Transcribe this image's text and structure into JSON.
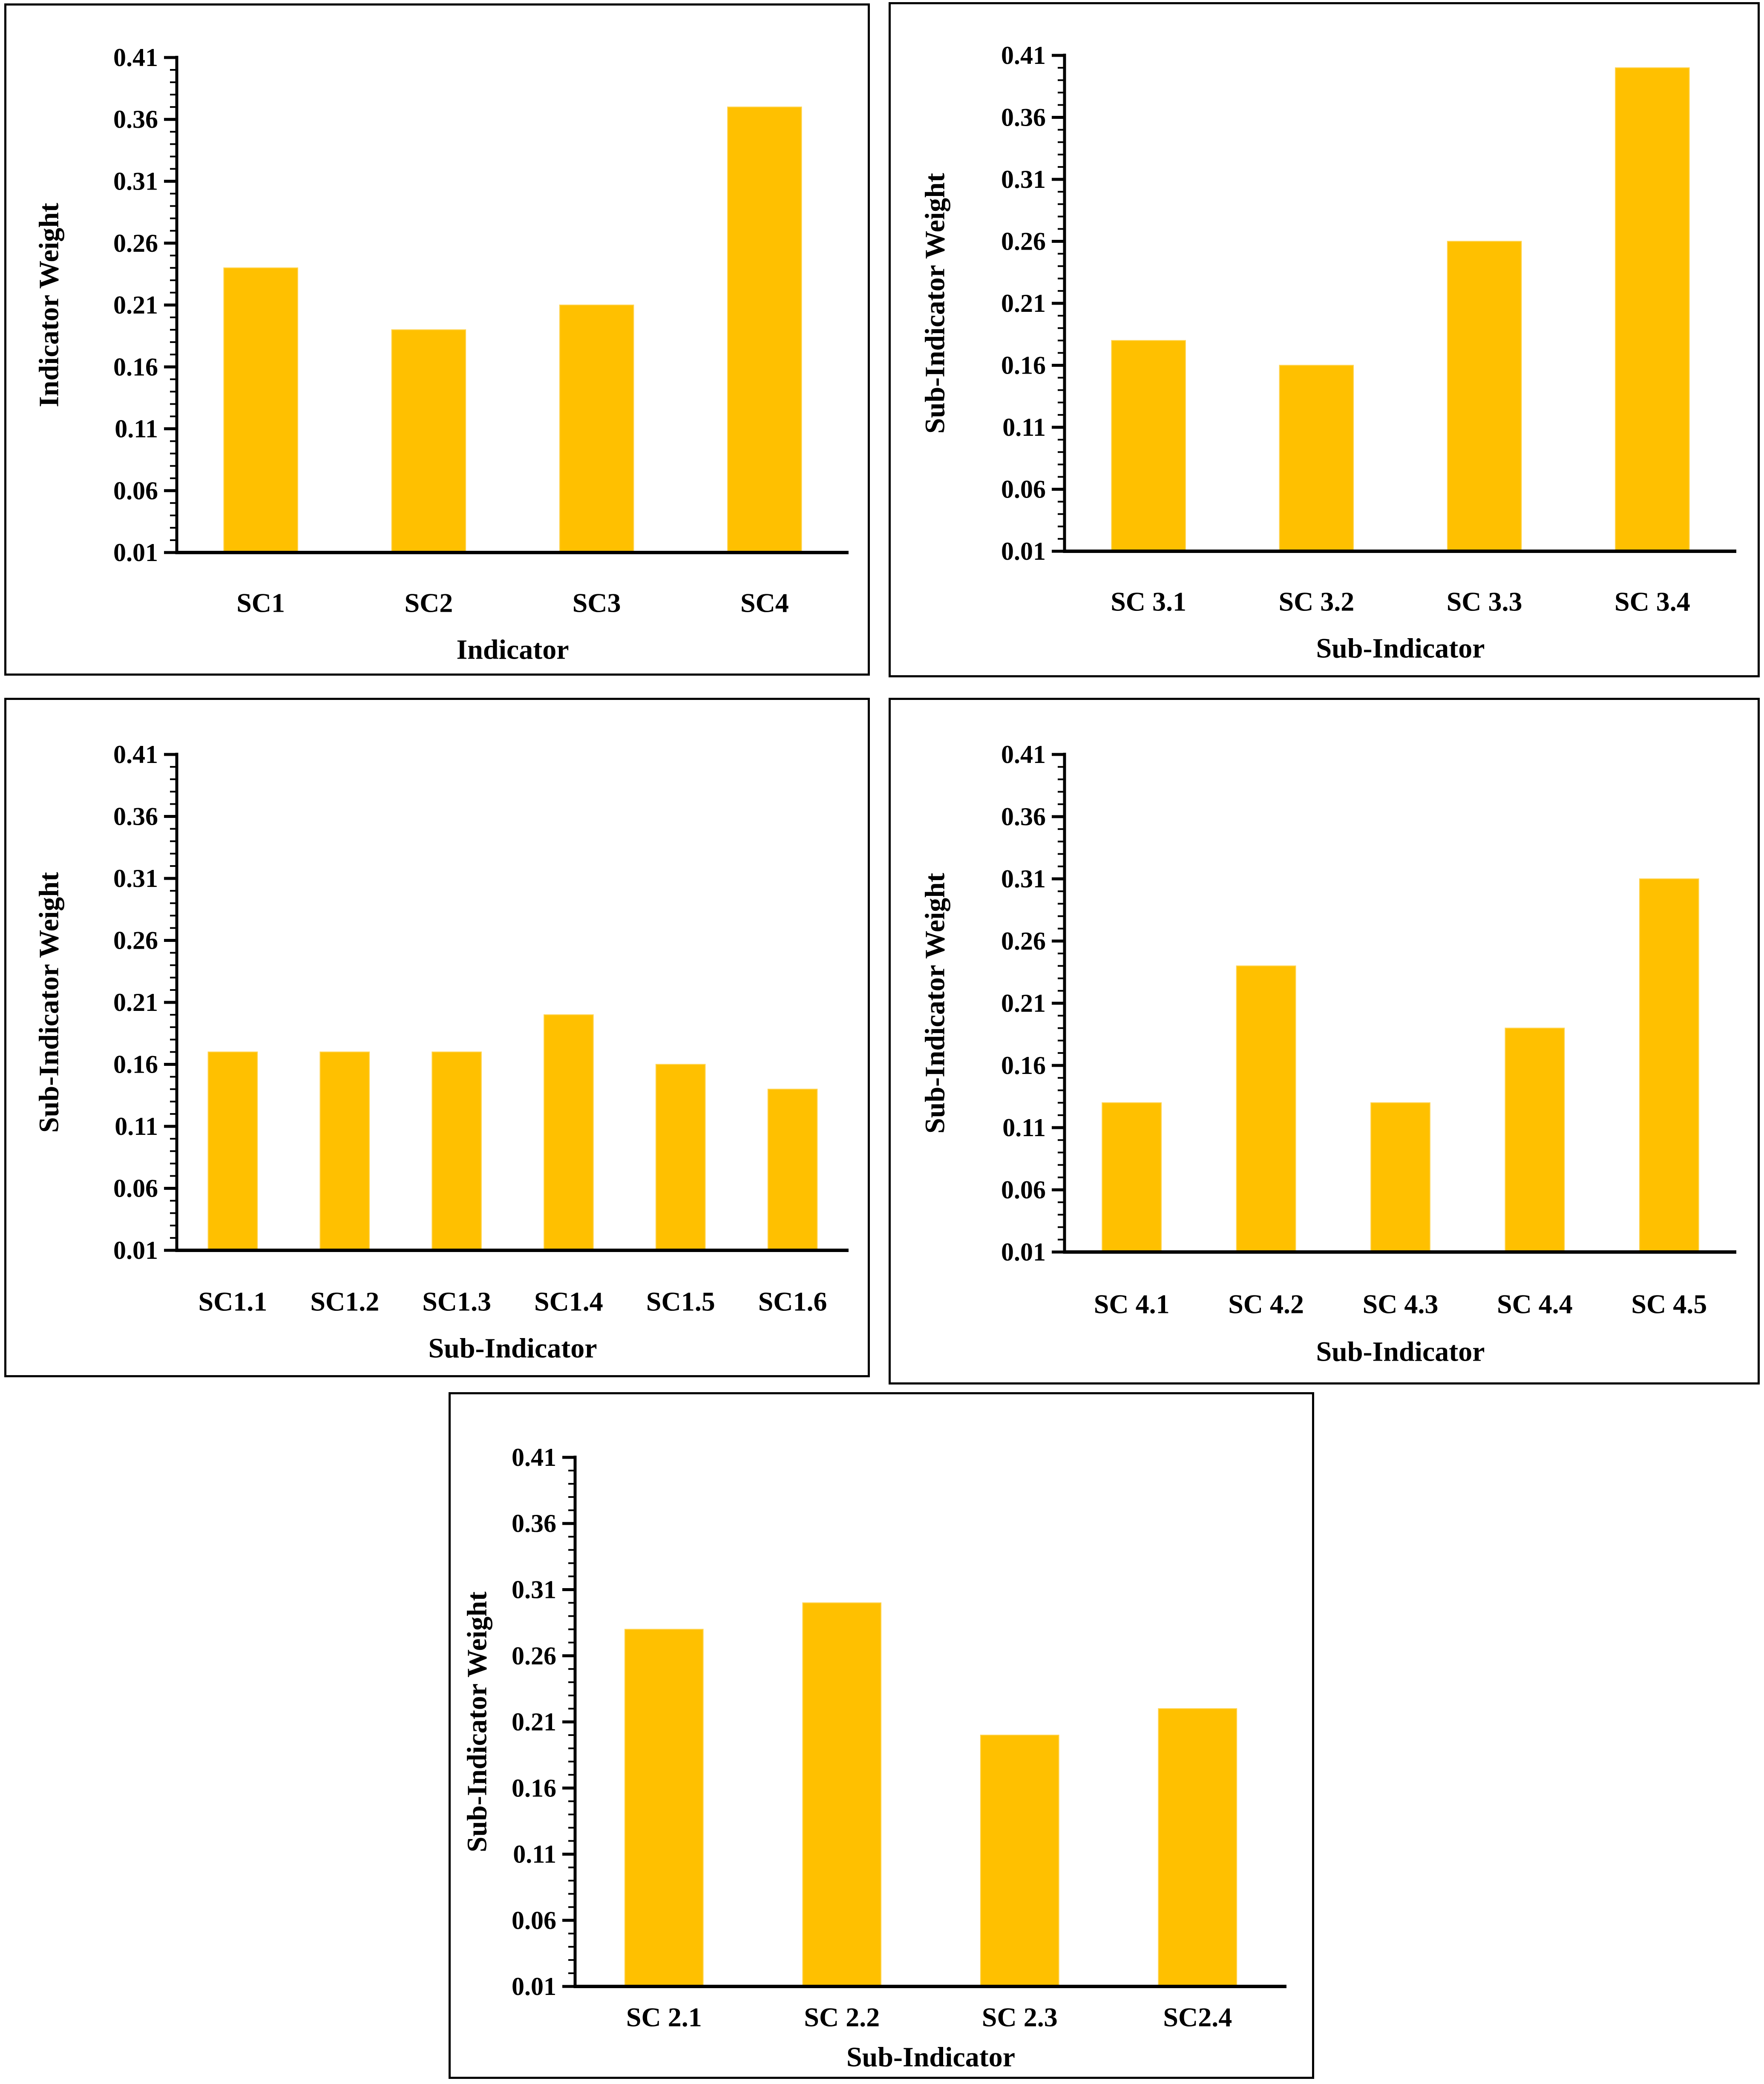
{
  "page": {
    "background": "#ffffff",
    "description": "Five AHP weight bar charts: one indicator-level chart and four sub-indicator charts"
  },
  "colors": {
    "bar_fill": "#FFC000",
    "bar_edge_highlight": "#FFD34D",
    "axis": "#000000",
    "panel_border": "#000000",
    "text": "#000000"
  },
  "axis_defaults": {
    "ymin": 0.01,
    "ymax": 0.41,
    "major_step": 0.05,
    "minor_step": 0.01,
    "tick_labels_top_to_bottom": [
      "0.41",
      "0.36",
      "0.31",
      "0.26",
      "0.21",
      "0.16",
      "0.11",
      "0.06",
      "0.01"
    ],
    "grid": false,
    "legend": "none"
  },
  "chart_data": [
    {
      "type": "bar",
      "title": "",
      "xlabel": "Indicator",
      "ylabel": "Indicator Weight",
      "categories": [
        "SC1",
        "SC2",
        "SC3",
        "SC4"
      ],
      "values": [
        0.24,
        0.19,
        0.21,
        0.37
      ],
      "ylim": [
        0.01,
        0.41
      ],
      "yticks": [
        0.01,
        0.06,
        0.11,
        0.16,
        0.21,
        0.26,
        0.31,
        0.36,
        0.41
      ],
      "grid": false
    },
    {
      "type": "bar",
      "title": "",
      "xlabel": "Sub-Indicator",
      "ylabel": "Sub-Indicator Weight",
      "categories": [
        "SC 3.1",
        "SC 3.2",
        "SC 3.3",
        "SC 3.4"
      ],
      "values": [
        0.18,
        0.16,
        0.26,
        0.4
      ],
      "ylim": [
        0.01,
        0.41
      ],
      "yticks": [
        0.01,
        0.06,
        0.11,
        0.16,
        0.21,
        0.26,
        0.31,
        0.36,
        0.41
      ],
      "grid": false
    },
    {
      "type": "bar",
      "title": "",
      "xlabel": "Sub-Indicator",
      "ylabel": "Sub-Indicator Weight",
      "categories": [
        "SC1.1",
        "SC1.2",
        "SC1.3",
        "SC1.4",
        "SC1.5",
        "SC1.6"
      ],
      "values": [
        0.17,
        0.17,
        0.17,
        0.2,
        0.16,
        0.14
      ],
      "ylim": [
        0.01,
        0.41
      ],
      "yticks": [
        0.01,
        0.06,
        0.11,
        0.16,
        0.21,
        0.26,
        0.31,
        0.36,
        0.41
      ],
      "grid": false
    },
    {
      "type": "bar",
      "title": "",
      "xlabel": "Sub-Indicator",
      "ylabel": "Sub-Indicator Weight",
      "categories": [
        "SC 4.1",
        "SC 4.2",
        "SC 4.3",
        "SC 4.4",
        "SC 4.5"
      ],
      "values": [
        0.13,
        0.24,
        0.13,
        0.19,
        0.31
      ],
      "ylim": [
        0.01,
        0.41
      ],
      "yticks": [
        0.01,
        0.06,
        0.11,
        0.16,
        0.21,
        0.26,
        0.31,
        0.36,
        0.41
      ],
      "grid": false
    },
    {
      "type": "bar",
      "title": "",
      "xlabel": "Sub-Indicator",
      "ylabel": "Sub-Indicator Weight",
      "categories": [
        "SC 2.1",
        "SC 2.2",
        "SC 2.3",
        "SC2.4"
      ],
      "values": [
        0.28,
        0.3,
        0.2,
        0.22
      ],
      "ylim": [
        0.01,
        0.41
      ],
      "yticks": [
        0.01,
        0.06,
        0.11,
        0.16,
        0.21,
        0.26,
        0.31,
        0.36,
        0.41
      ],
      "grid": false
    }
  ]
}
